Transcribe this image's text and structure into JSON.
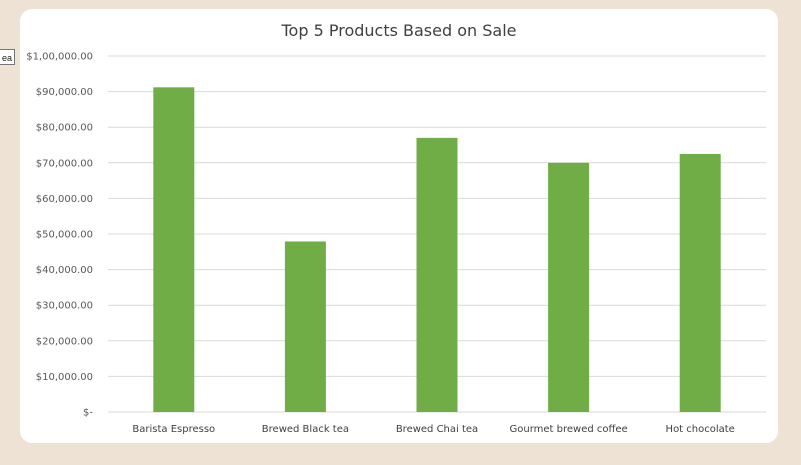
{
  "tooltip_fragment": "ea",
  "chart_data": {
    "type": "bar",
    "title": "Top 5 Products Based on Sale",
    "categories": [
      "Barista Espresso",
      "Brewed Black tea",
      "Brewed Chai tea",
      "Gourmet brewed coffee",
      "Hot chocolate"
    ],
    "values": [
      91200,
      47900,
      77000,
      70000,
      72500
    ],
    "ylim": [
      0,
      100000
    ],
    "yticks": [
      0,
      10000,
      20000,
      30000,
      40000,
      50000,
      60000,
      70000,
      80000,
      90000,
      100000
    ],
    "ytick_labels": [
      "$-",
      "$10,000.00",
      "$20,000.00",
      "$30,000.00",
      "$40,000.00",
      "$50,000.00",
      "$60,000.00",
      "$70,000.00",
      "$80,000.00",
      "$90,000.00",
      "$1,00,000.00"
    ],
    "grid": true,
    "bar_color": "#70ad47",
    "grid_color": "#d9d9d9"
  }
}
